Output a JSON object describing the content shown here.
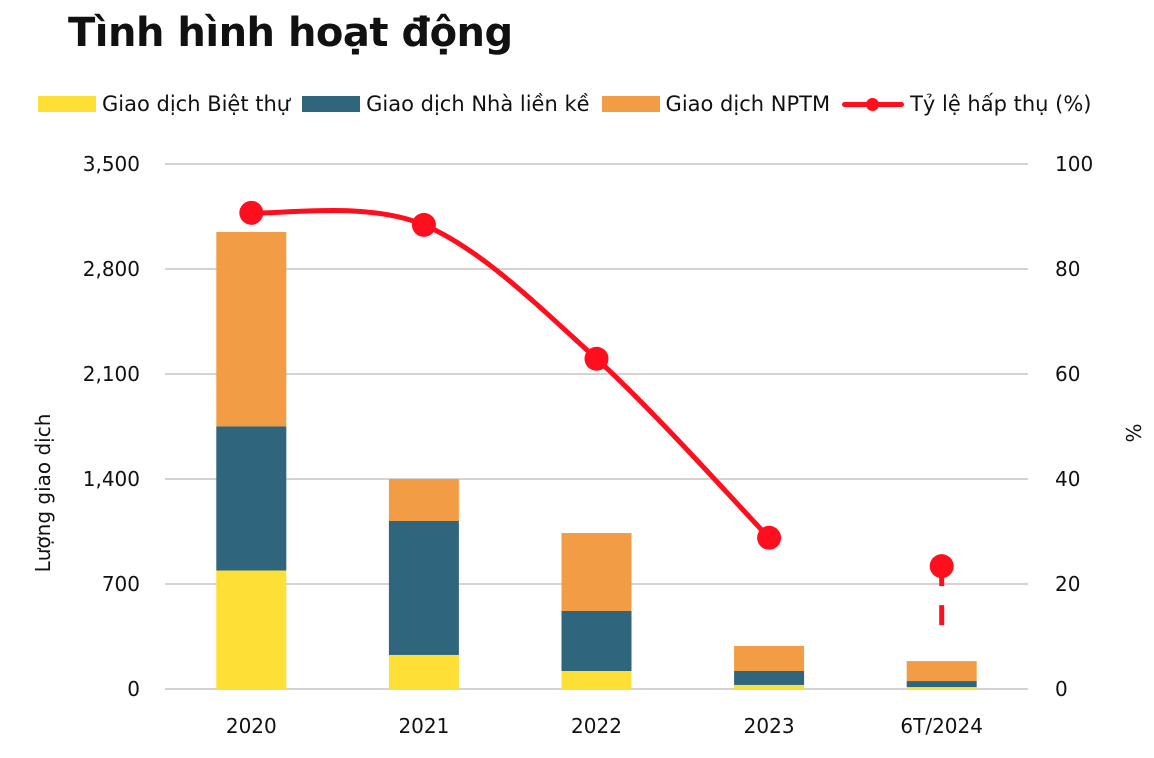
{
  "chart_data": {
    "type": "bar",
    "title": "Tình hình hoạt động",
    "categories": [
      "2020",
      "2021",
      "2022",
      "2023",
      "6T/2024"
    ],
    "series": [
      {
        "name": "Giao dịch Biệt thự",
        "type": "stacked-bar",
        "axis": "left",
        "color": "#FDDF35",
        "values": [
          790,
          227,
          120,
          27,
          13
        ]
      },
      {
        "name": "Giao dịch Nhà liền kề",
        "type": "stacked-bar",
        "axis": "left",
        "color": "#2F667D",
        "values": [
          960,
          893,
          400,
          93,
          40
        ]
      },
      {
        "name": "Giao dịch NPTM",
        "type": "stacked-bar",
        "axis": "left",
        "color": "#F29C45",
        "values": [
          1297,
          280,
          520,
          167,
          133
        ]
      },
      {
        "name": "Tỷ lệ hấp thụ (%)",
        "type": "line",
        "axis": "right",
        "color": "#FF0E1E",
        "values": [
          90.7,
          88.4,
          62.9,
          28.8,
          23.4
        ]
      }
    ],
    "ylabel": "Lượng giao dịch",
    "ylabel_right": "%",
    "ylim": [
      0,
      3500
    ],
    "yticks": [
      "0",
      "700",
      "1,400",
      "2,100",
      "2,800",
      "3,500"
    ],
    "ylim_right": [
      0,
      100
    ],
    "yticks_right": [
      "0",
      "20",
      "40",
      "60",
      "80",
      "100"
    ],
    "grid": true,
    "legend": "top"
  }
}
